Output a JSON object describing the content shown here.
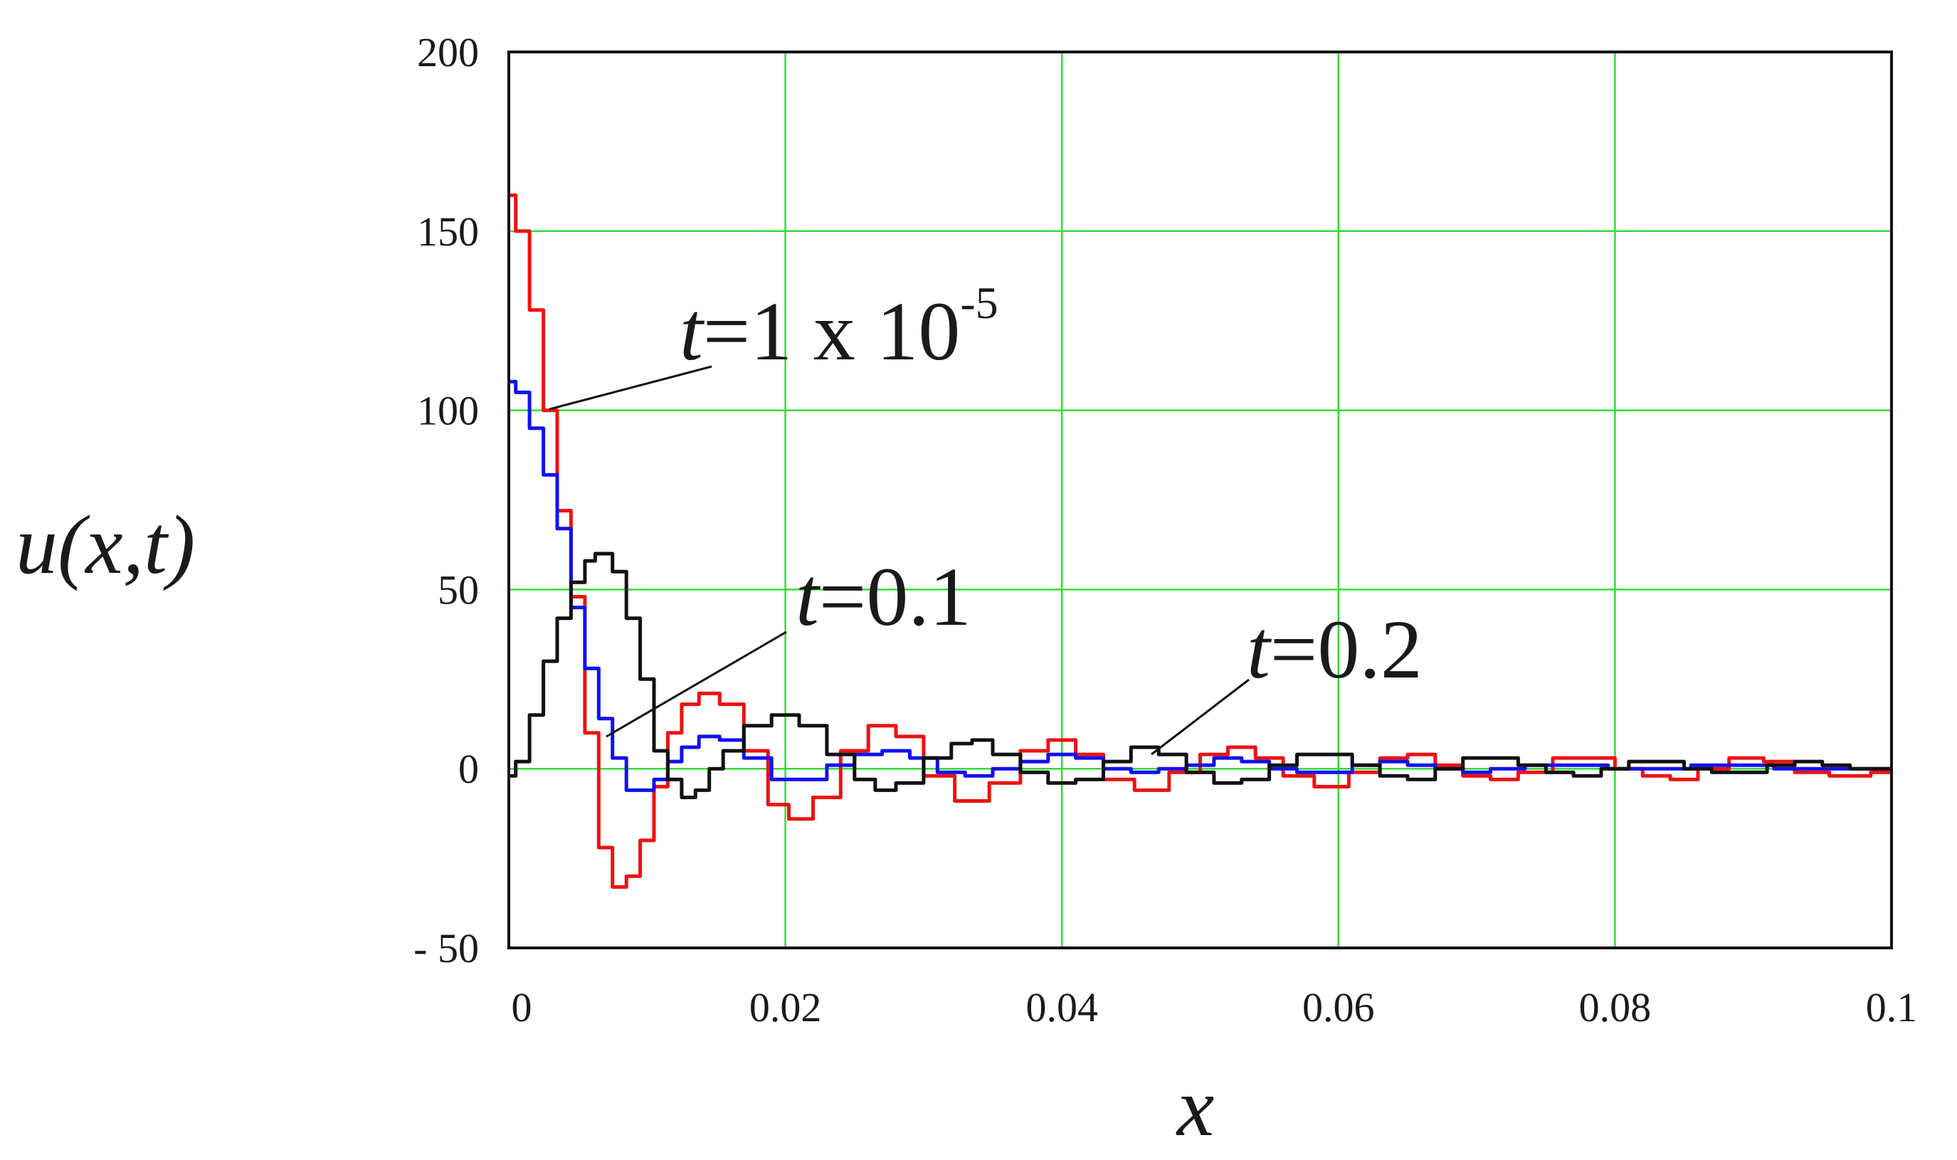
{
  "chart_data": {
    "type": "line",
    "xlabel": "x",
    "ylabel": "u(x,t)",
    "xlim": [
      0,
      0.1
    ],
    "ylim": [
      -50,
      200
    ],
    "grid": true,
    "x_ticks": [
      "0",
      "0.02",
      "0.04",
      "0.06",
      "0.08",
      "0.1"
    ],
    "y_ticks": [
      "200",
      "150",
      "100",
      "50",
      "0",
      "- 50"
    ],
    "colors": {
      "grid": "#33dd33",
      "frame": "#111111"
    },
    "series": [
      {
        "color": "#ee1111",
        "points": [
          [
            0,
            160
          ],
          [
            0.001,
            150
          ],
          [
            0.002,
            128
          ],
          [
            0.003,
            100
          ],
          [
            0.004,
            72
          ],
          [
            0.005,
            48
          ],
          [
            0.006,
            10
          ],
          [
            0.007,
            -22
          ],
          [
            0.008,
            -33
          ],
          [
            0.009,
            -30
          ],
          [
            0.01,
            -20
          ],
          [
            0.011,
            -5
          ],
          [
            0.012,
            10
          ],
          [
            0.013,
            18
          ],
          [
            0.0145,
            21
          ],
          [
            0.016,
            18
          ],
          [
            0.018,
            5
          ],
          [
            0.0195,
            -10
          ],
          [
            0.021,
            -14
          ],
          [
            0.023,
            -8
          ],
          [
            0.025,
            5
          ],
          [
            0.027,
            12
          ],
          [
            0.029,
            9
          ],
          [
            0.031,
            -2
          ],
          [
            0.0335,
            -9
          ],
          [
            0.036,
            -4
          ],
          [
            0.038,
            5
          ],
          [
            0.04,
            8
          ],
          [
            0.042,
            4
          ],
          [
            0.044,
            -3
          ],
          [
            0.0465,
            -6
          ],
          [
            0.049,
            -1
          ],
          [
            0.051,
            4
          ],
          [
            0.053,
            6
          ],
          [
            0.055,
            3
          ],
          [
            0.057,
            -2
          ],
          [
            0.0595,
            -5
          ],
          [
            0.062,
            -1
          ],
          [
            0.064,
            3
          ],
          [
            0.066,
            4
          ],
          [
            0.068,
            1
          ],
          [
            0.07,
            -2
          ],
          [
            0.072,
            -3
          ],
          [
            0.074,
            -1
          ],
          [
            0.077,
            3
          ],
          [
            0.079,
            3
          ],
          [
            0.081,
            0
          ],
          [
            0.083,
            -2
          ],
          [
            0.085,
            -3
          ],
          [
            0.087,
            0
          ],
          [
            0.0895,
            3
          ],
          [
            0.092,
            2
          ],
          [
            0.094,
            -1
          ],
          [
            0.097,
            -2
          ],
          [
            0.1,
            -1
          ]
        ]
      },
      {
        "color": "#1111ee",
        "points": [
          [
            0,
            108
          ],
          [
            0.001,
            105
          ],
          [
            0.002,
            95
          ],
          [
            0.003,
            82
          ],
          [
            0.004,
            67
          ],
          [
            0.005,
            45
          ],
          [
            0.006,
            28
          ],
          [
            0.007,
            14
          ],
          [
            0.008,
            3
          ],
          [
            0.009,
            -6
          ],
          [
            0.01,
            -6
          ],
          [
            0.011,
            -3
          ],
          [
            0.012,
            2
          ],
          [
            0.013,
            6
          ],
          [
            0.0145,
            9
          ],
          [
            0.016,
            8
          ],
          [
            0.018,
            3
          ],
          [
            0.02,
            -3
          ],
          [
            0.022,
            -3
          ],
          [
            0.024,
            1
          ],
          [
            0.026,
            4
          ],
          [
            0.028,
            5
          ],
          [
            0.03,
            3
          ],
          [
            0.032,
            -1
          ],
          [
            0.034,
            -2
          ],
          [
            0.036,
            0
          ],
          [
            0.038,
            2
          ],
          [
            0.04,
            4
          ],
          [
            0.042,
            3
          ],
          [
            0.044,
            0
          ],
          [
            0.046,
            -1
          ],
          [
            0.048,
            0
          ],
          [
            0.05,
            1
          ],
          [
            0.052,
            3
          ],
          [
            0.054,
            2
          ],
          [
            0.056,
            0
          ],
          [
            0.058,
            -1
          ],
          [
            0.06,
            -1
          ],
          [
            0.062,
            1
          ],
          [
            0.064,
            2
          ],
          [
            0.066,
            1
          ],
          [
            0.068,
            0
          ],
          [
            0.07,
            -1
          ],
          [
            0.072,
            0
          ],
          [
            0.075,
            1
          ],
          [
            0.078,
            1
          ],
          [
            0.081,
            0
          ],
          [
            0.084,
            0
          ],
          [
            0.087,
            1
          ],
          [
            0.09,
            1
          ],
          [
            0.093,
            0
          ],
          [
            0.096,
            0
          ],
          [
            0.1,
            0
          ]
        ]
      },
      {
        "color": "#111111",
        "points": [
          [
            0,
            -2
          ],
          [
            0.001,
            2
          ],
          [
            0.002,
            15
          ],
          [
            0.003,
            30
          ],
          [
            0.004,
            42
          ],
          [
            0.005,
            52
          ],
          [
            0.006,
            58
          ],
          [
            0.0065,
            60
          ],
          [
            0.007,
            60
          ],
          [
            0.008,
            55
          ],
          [
            0.009,
            42
          ],
          [
            0.01,
            25
          ],
          [
            0.011,
            5
          ],
          [
            0.012,
            -3
          ],
          [
            0.013,
            -8
          ],
          [
            0.014,
            -6
          ],
          [
            0.015,
            0
          ],
          [
            0.016,
            5
          ],
          [
            0.018,
            12
          ],
          [
            0.02,
            15
          ],
          [
            0.022,
            12
          ],
          [
            0.024,
            4
          ],
          [
            0.026,
            -3
          ],
          [
            0.027,
            -6
          ],
          [
            0.029,
            -4
          ],
          [
            0.031,
            3
          ],
          [
            0.033,
            7
          ],
          [
            0.034,
            8
          ],
          [
            0.036,
            4
          ],
          [
            0.038,
            -1
          ],
          [
            0.04,
            -4
          ],
          [
            0.042,
            -3
          ],
          [
            0.044,
            2
          ],
          [
            0.046,
            6
          ],
          [
            0.048,
            4
          ],
          [
            0.05,
            -1
          ],
          [
            0.052,
            -4
          ],
          [
            0.054,
            -3
          ],
          [
            0.056,
            1
          ],
          [
            0.058,
            4
          ],
          [
            0.06,
            4
          ],
          [
            0.062,
            1
          ],
          [
            0.064,
            -2
          ],
          [
            0.066,
            -3
          ],
          [
            0.068,
            0
          ],
          [
            0.07,
            3
          ],
          [
            0.072,
            3
          ],
          [
            0.074,
            1
          ],
          [
            0.076,
            -1
          ],
          [
            0.078,
            -2
          ],
          [
            0.08,
            0
          ],
          [
            0.082,
            2
          ],
          [
            0.084,
            2
          ],
          [
            0.086,
            0
          ],
          [
            0.088,
            -1
          ],
          [
            0.09,
            -1
          ],
          [
            0.092,
            1
          ],
          [
            0.094,
            2
          ],
          [
            0.096,
            1
          ],
          [
            0.098,
            0
          ],
          [
            0.1,
            0
          ]
        ]
      }
    ],
    "annotations": [
      {
        "var": "t",
        "eq": "=1 x 10",
        "sup": "-5"
      },
      {
        "var": "t",
        "eq": "=0.1"
      },
      {
        "var": "t",
        "eq": "=0.2"
      }
    ]
  }
}
